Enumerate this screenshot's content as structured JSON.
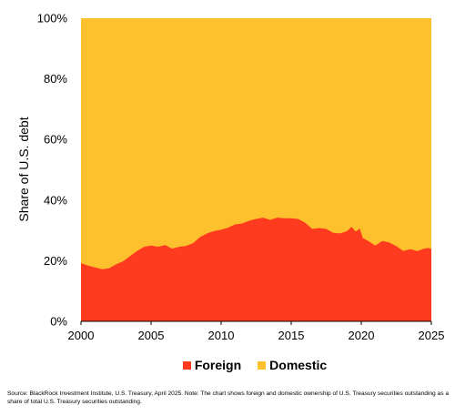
{
  "chart_data": {
    "type": "area",
    "stacked": true,
    "ylabel": "Share of U.S. debt",
    "xlim": [
      2000,
      2025
    ],
    "ylim": [
      0,
      100
    ],
    "x_ticks": [
      2000,
      2005,
      2010,
      2015,
      2020,
      2025
    ],
    "y_ticks": [
      0,
      20,
      40,
      60,
      80,
      100
    ],
    "x_tick_labels": [
      "2000",
      "2005",
      "2010",
      "2015",
      "2020",
      "2025"
    ],
    "y_tick_labels": [
      "0%",
      "20%",
      "40%",
      "60%",
      "80%",
      "100%"
    ],
    "grid": false,
    "legend_position": "bottom",
    "series": [
      {
        "name": "Foreign",
        "color": "#ff3b1f",
        "points": [
          [
            2000.0,
            19.2
          ],
          [
            2000.5,
            18.4
          ],
          [
            2001.0,
            17.8
          ],
          [
            2001.5,
            17.2
          ],
          [
            2002.0,
            17.5
          ],
          [
            2002.5,
            18.8
          ],
          [
            2003.0,
            19.8
          ],
          [
            2003.5,
            21.5
          ],
          [
            2004.0,
            23.2
          ],
          [
            2004.5,
            24.6
          ],
          [
            2005.0,
            25.0
          ],
          [
            2005.5,
            24.6
          ],
          [
            2006.0,
            25.2
          ],
          [
            2006.5,
            24.0
          ],
          [
            2007.0,
            24.6
          ],
          [
            2007.5,
            24.9
          ],
          [
            2008.0,
            25.8
          ],
          [
            2008.5,
            27.8
          ],
          [
            2009.0,
            29.0
          ],
          [
            2009.5,
            29.8
          ],
          [
            2010.0,
            30.2
          ],
          [
            2010.5,
            30.9
          ],
          [
            2011.0,
            32.0
          ],
          [
            2011.5,
            32.3
          ],
          [
            2012.0,
            33.2
          ],
          [
            2012.5,
            33.8
          ],
          [
            2013.0,
            34.2
          ],
          [
            2013.5,
            33.5
          ],
          [
            2014.0,
            34.2
          ],
          [
            2014.5,
            34.0
          ],
          [
            2015.0,
            34.0
          ],
          [
            2015.5,
            33.8
          ],
          [
            2016.0,
            32.5
          ],
          [
            2016.5,
            30.5
          ],
          [
            2017.0,
            30.8
          ],
          [
            2017.5,
            30.5
          ],
          [
            2018.0,
            29.2
          ],
          [
            2018.5,
            29.0
          ],
          [
            2019.0,
            29.8
          ],
          [
            2019.3,
            31.2
          ],
          [
            2019.6,
            29.6
          ],
          [
            2019.9,
            30.6
          ],
          [
            2020.1,
            27.5
          ],
          [
            2020.5,
            26.5
          ],
          [
            2021.0,
            25.0
          ],
          [
            2021.5,
            26.5
          ],
          [
            2022.0,
            26.0
          ],
          [
            2022.5,
            24.8
          ],
          [
            2023.0,
            23.2
          ],
          [
            2023.5,
            23.8
          ],
          [
            2024.0,
            23.2
          ],
          [
            2024.5,
            24.0
          ],
          [
            2024.8,
            24.2
          ],
          [
            2025.0,
            23.8
          ]
        ]
      },
      {
        "name": "Domestic",
        "color": "#fdc12e",
        "description_of_values": "remainder to 100%"
      }
    ]
  },
  "note": {
    "text": "Source: BlackRock Investment Institute, U.S. Treasury, April 2025. Note: The chart shows foreign and domestic ownership of U.S. Treasury securities outstanding as a share of total U.S. Treasury securities outstanding."
  }
}
